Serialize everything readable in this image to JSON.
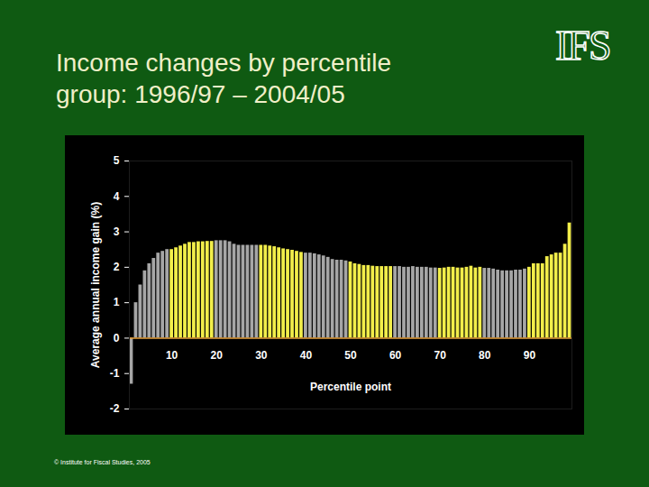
{
  "chart_data": {
    "type": "bar",
    "title": "Income changes by percentile group: 1996/97 – 2004/05",
    "logo_text": "IFS",
    "caption": "© Institute for Fiscal Studies, 2005",
    "x_label": "Percentile point",
    "y_label": "Average annual income gain (%)",
    "x": [
      1,
      2,
      3,
      4,
      5,
      6,
      7,
      8,
      9,
      10,
      11,
      12,
      13,
      14,
      15,
      16,
      17,
      18,
      19,
      20,
      21,
      22,
      23,
      24,
      25,
      26,
      27,
      28,
      29,
      30,
      31,
      32,
      33,
      34,
      35,
      36,
      37,
      38,
      39,
      40,
      41,
      42,
      43,
      44,
      45,
      46,
      47,
      48,
      49,
      50,
      51,
      52,
      53,
      54,
      55,
      56,
      57,
      58,
      59,
      60,
      61,
      62,
      63,
      64,
      65,
      66,
      67,
      68,
      69,
      70,
      71,
      72,
      73,
      74,
      75,
      76,
      77,
      78,
      79,
      80,
      81,
      82,
      83,
      84,
      85,
      86,
      87,
      88,
      89,
      90,
      91,
      92,
      93,
      94,
      95,
      96,
      97,
      98,
      99
    ],
    "values": [
      -1.3,
      1.0,
      1.5,
      1.9,
      2.1,
      2.25,
      2.4,
      2.45,
      2.5,
      2.5,
      2.55,
      2.6,
      2.65,
      2.7,
      2.7,
      2.72,
      2.72,
      2.73,
      2.73,
      2.75,
      2.75,
      2.75,
      2.72,
      2.65,
      2.62,
      2.62,
      2.62,
      2.62,
      2.62,
      2.62,
      2.62,
      2.6,
      2.58,
      2.55,
      2.52,
      2.5,
      2.48,
      2.45,
      2.42,
      2.4,
      2.4,
      2.38,
      2.35,
      2.32,
      2.28,
      2.22,
      2.2,
      2.2,
      2.18,
      2.15,
      2.1,
      2.08,
      2.05,
      2.05,
      2.03,
      2.02,
      2.02,
      2.02,
      2.02,
      2.02,
      2.02,
      2.0,
      2.0,
      2.02,
      2.0,
      2.0,
      2.0,
      1.98,
      1.98,
      1.97,
      1.98,
      2.0,
      2.0,
      1.98,
      1.98,
      2.0,
      2.03,
      1.98,
      2.0,
      1.97,
      1.97,
      1.95,
      1.92,
      1.9,
      1.9,
      1.9,
      1.92,
      1.92,
      1.95,
      2.0,
      2.1,
      2.1,
      2.1,
      2.3,
      2.35,
      2.4,
      2.4,
      2.65,
      3.25
    ],
    "colors": [
      "#a6a6a6",
      "#a6a6a6",
      "#a6a6a6",
      "#a6a6a6",
      "#a6a6a6",
      "#a6a6a6",
      "#a6a6a6",
      "#a6a6a6",
      "#a6a6a6",
      "#f2ee4a",
      "#f2ee4a",
      "#f2ee4a",
      "#f2ee4a",
      "#f2ee4a",
      "#f2ee4a",
      "#f2ee4a",
      "#f2ee4a",
      "#f2ee4a",
      "#f2ee4a",
      "#a6a6a6",
      "#a6a6a6",
      "#a6a6a6",
      "#a6a6a6",
      "#a6a6a6",
      "#a6a6a6",
      "#a6a6a6",
      "#a6a6a6",
      "#a6a6a6",
      "#a6a6a6",
      "#f2ee4a",
      "#f2ee4a",
      "#f2ee4a",
      "#f2ee4a",
      "#f2ee4a",
      "#f2ee4a",
      "#f2ee4a",
      "#f2ee4a",
      "#f2ee4a",
      "#f2ee4a",
      "#a6a6a6",
      "#a6a6a6",
      "#a6a6a6",
      "#a6a6a6",
      "#a6a6a6",
      "#a6a6a6",
      "#a6a6a6",
      "#a6a6a6",
      "#a6a6a6",
      "#a6a6a6",
      "#f2ee4a",
      "#f2ee4a",
      "#f2ee4a",
      "#f2ee4a",
      "#f2ee4a",
      "#f2ee4a",
      "#f2ee4a",
      "#f2ee4a",
      "#f2ee4a",
      "#f2ee4a",
      "#a6a6a6",
      "#a6a6a6",
      "#a6a6a6",
      "#a6a6a6",
      "#a6a6a6",
      "#a6a6a6",
      "#a6a6a6",
      "#a6a6a6",
      "#a6a6a6",
      "#a6a6a6",
      "#f2ee4a",
      "#f2ee4a",
      "#f2ee4a",
      "#f2ee4a",
      "#f2ee4a",
      "#f2ee4a",
      "#f2ee4a",
      "#f2ee4a",
      "#f2ee4a",
      "#f2ee4a",
      "#a6a6a6",
      "#a6a6a6",
      "#a6a6a6",
      "#a6a6a6",
      "#a6a6a6",
      "#a6a6a6",
      "#a6a6a6",
      "#a6a6a6",
      "#a6a6a6",
      "#a6a6a6",
      "#f2ee4a",
      "#f2ee4a",
      "#f2ee4a",
      "#f2ee4a",
      "#f2ee4a",
      "#f2ee4a",
      "#f2ee4a",
      "#f2ee4a",
      "#f2ee4a",
      "#f2ee4a"
    ],
    "xlim": [
      0.5,
      99.5
    ],
    "xticks": [
      10,
      20,
      30,
      40,
      50,
      60,
      70,
      80,
      90
    ],
    "ylim": [
      -2,
      5
    ],
    "yticks": [
      -2,
      -1,
      0,
      1,
      2,
      3,
      4,
      5
    ],
    "grid": false
  }
}
